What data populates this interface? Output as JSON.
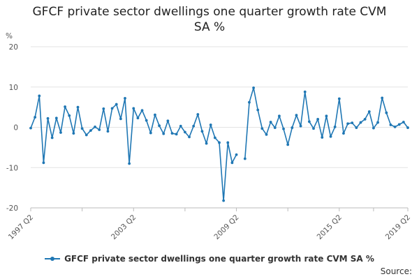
{
  "chart_data": {
    "type": "line",
    "title": "GFCF private sector dwellings one quarter growth rate CVM SA %",
    "ylabel": "%",
    "ylim": [
      -20,
      20
    ],
    "yticks": [
      -20,
      -10,
      0,
      10,
      20
    ],
    "grid": true,
    "legend_position": "bottom",
    "x_tick_labels": [
      "1997 Q2",
      "2003 Q2",
      "2009 Q2",
      "2015 Q2",
      "2019 Q2"
    ],
    "x_start": "1997 Q2",
    "series": [
      {
        "name": "GFCF private sector dwellings one quarter growth rate CVM SA %",
        "color": "#1f77b4",
        "values": [
          -0.2,
          2.5,
          7.8,
          -8.8,
          2.2,
          -2.6,
          2.3,
          -1.3,
          5.1,
          2.9,
          -1.5,
          5.0,
          -0.3,
          -1.9,
          -0.8,
          0.1,
          -0.6,
          4.6,
          -1.0,
          4.7,
          5.7,
          2.1,
          7.2,
          -9.0,
          4.7,
          2.3,
          4.2,
          1.7,
          -1.4,
          3.1,
          0.4,
          -1.6,
          1.6,
          -1.5,
          -1.7,
          0.3,
          -1.2,
          -2.4,
          0.3,
          3.2,
          -1.0,
          -4.0,
          0.6,
          -2.6,
          -3.8,
          -18.2,
          -3.8,
          -8.8,
          -6.8,
          null,
          -7.8,
          6.2,
          9.8,
          4.3,
          -0.3,
          -1.8,
          1.3,
          -0.1,
          2.8,
          -0.4,
          -4.3,
          -0.1,
          3.0,
          0.3,
          8.8,
          1.4,
          -0.3,
          2.0,
          -2.5,
          2.8,
          -2.3,
          0.1,
          7.1,
          -1.5,
          0.9,
          1.1,
          -0.1,
          1.2,
          2.0,
          3.9,
          -0.2,
          1.2,
          7.3,
          3.6,
          0.6,
          0.1,
          0.7,
          1.3,
          -0.1
        ]
      }
    ]
  },
  "legend_label": "GFCF private sector dwellings one quarter growth rate CVM SA %",
  "source_label": "Source:"
}
